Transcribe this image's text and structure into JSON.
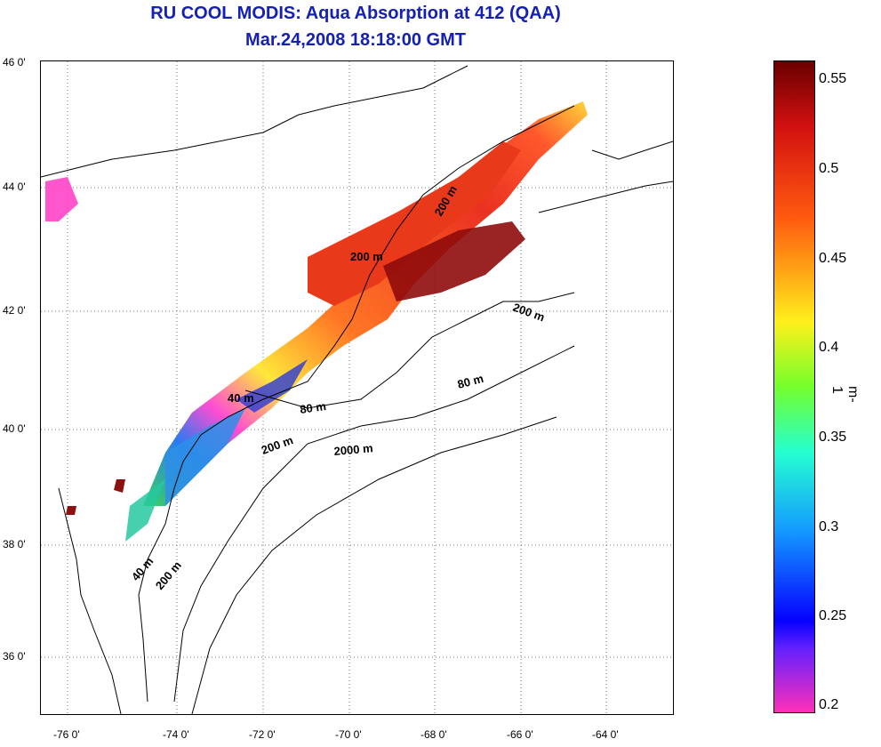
{
  "header": {
    "title": "RU COOL MODIS: Aqua Absorption at 412 (QAA)",
    "subtitle": "Mar.24,2008 18:18:00 GMT"
  },
  "map": {
    "lat_labels": [
      "46 0'",
      "44 0'",
      "42 0'",
      "40 0'",
      "38 0'",
      "36 0'"
    ],
    "lon_labels": [
      "-76 0'",
      "-74 0'",
      "-72 0'",
      "-70 0'",
      "-68 0'",
      "-66 0'",
      "-64 0'"
    ],
    "contour_labels": [
      "200 m",
      "200 m",
      "200 m",
      "80 m",
      "80 m",
      "40 m",
      "200 m",
      "2000 m",
      "40 m",
      "200 m"
    ]
  },
  "colorbar": {
    "unit": "m-1",
    "tick_labels": [
      "0.55",
      "0.5",
      "0.45",
      "0.4",
      "0.35",
      "0.3",
      "0.25",
      "0.2"
    ]
  },
  "colors": {
    "title": "#1520b4"
  }
}
